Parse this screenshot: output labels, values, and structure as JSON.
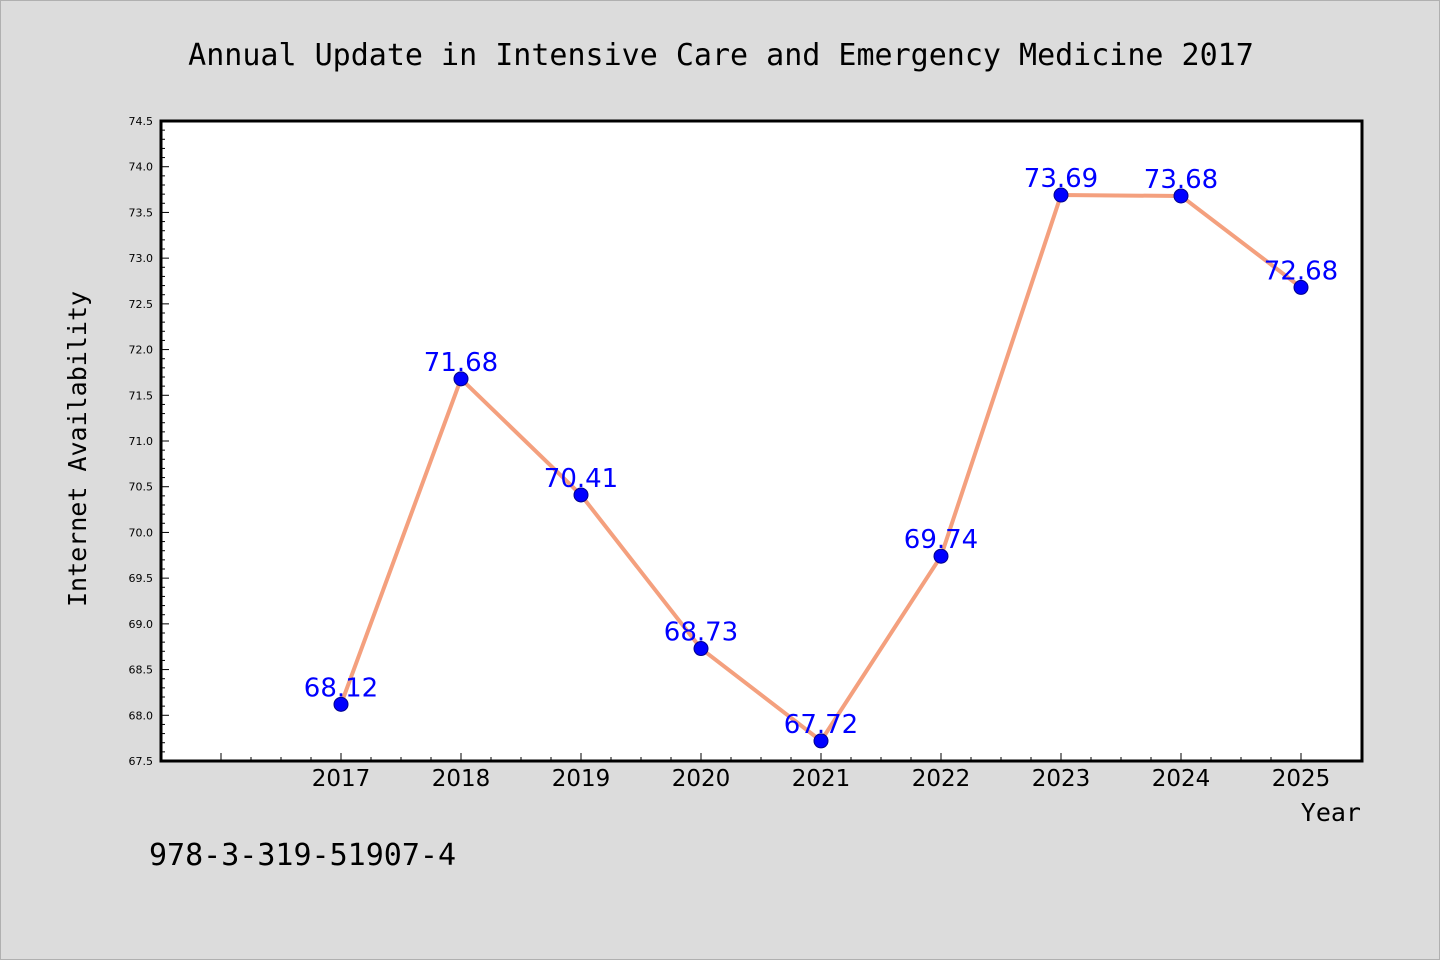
{
  "chart_data": {
    "type": "line",
    "title": "Annual Update in Intensive Care and Emergency Medicine 2017",
    "xlabel": "Year",
    "ylabel": "Internet Availability",
    "categories": [
      "2017",
      "2018",
      "2019",
      "2020",
      "2021",
      "2022",
      "2023",
      "2024",
      "2025"
    ],
    "series": [
      {
        "values": [
          68.12,
          71.68,
          70.41,
          68.73,
          67.72,
          69.74,
          73.69,
          73.68,
          72.68
        ],
        "labels": [
          "68.12",
          "71.68",
          "70.41",
          "68.73",
          "67.72",
          "69.74",
          "73.69",
          "73.68",
          "72.68"
        ]
      }
    ],
    "ylim": [
      67.5,
      74.5
    ],
    "yticks": [
      "67.5",
      "68.0",
      "68.5",
      "69.0",
      "69.5",
      "70.0",
      "70.5",
      "71.0",
      "71.5",
      "72.0",
      "72.5",
      "73.0",
      "73.5",
      "74.0",
      "74.5"
    ],
    "grid": false,
    "colors": {
      "line": "#f4a07e",
      "marker": "#0000ff",
      "label": "#0000ff",
      "background": "#dcdcdc",
      "plot_background": "#ffffff"
    }
  },
  "footer": {
    "isbn": "978-3-319-51907-4"
  }
}
